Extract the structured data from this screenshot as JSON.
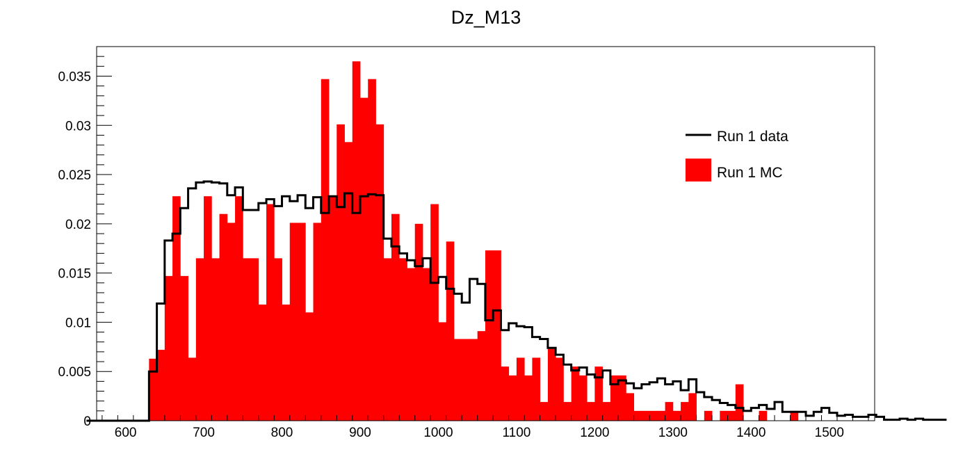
{
  "chart_data": {
    "type": "histogram",
    "title": "Dz_M13",
    "xlabel": "",
    "ylabel": "",
    "xlim": [
      563,
      1558
    ],
    "ylim": [
      0,
      0.038
    ],
    "bin_start": 630,
    "bin_width": 10,
    "x_ticks": [
      600,
      700,
      800,
      900,
      1000,
      1100,
      1200,
      1300,
      1400,
      1500
    ],
    "y_ticks": [
      0,
      0.005,
      0.01,
      0.015,
      0.02,
      0.025,
      0.03,
      0.035
    ],
    "y_tick_labels": [
      "0",
      "0.005",
      "0.01",
      "0.015",
      "0.02",
      "0.025",
      "0.03",
      "0.035"
    ],
    "x_tick_labels": [
      "600",
      "700",
      "800",
      "900",
      "1000",
      "1100",
      "1200",
      "1300",
      "1400",
      "1500"
    ],
    "legend": {
      "placement": "top-right"
    },
    "series": [
      {
        "name": "Run 1 MC",
        "style": "filled",
        "color": "#ff0000",
        "values": [
          0.0063,
          0.0072,
          0.0147,
          0.0228,
          0.0147,
          0.0064,
          0.0165,
          0.0228,
          0.0165,
          0.021,
          0.0201,
          0.0228,
          0.0165,
          0.0165,
          0.0118,
          0.022,
          0.0165,
          0.0118,
          0.0201,
          0.0201,
          0.011,
          0.0201,
          0.0347,
          0.0228,
          0.0301,
          0.0283,
          0.0365,
          0.0328,
          0.0347,
          0.0301,
          0.0165,
          0.021,
          0.0165,
          0.0155,
          0.02,
          0.0155,
          0.022,
          0.01,
          0.0182,
          0.0083,
          0.0083,
          0.0083,
          0.0091,
          0.0173,
          0.0173,
          0.0055,
          0.0046,
          0.0064,
          0.0046,
          0.0064,
          0.0019,
          0.0073,
          0.0064,
          0.0019,
          0.0055,
          0.0046,
          0.0019,
          0.0055,
          0.0019,
          0.0046,
          0.0046,
          0.0028,
          0.001,
          0.001,
          0.001,
          0.001,
          0.0019,
          0.001,
          0.0019,
          0.0028,
          0.0,
          0.001,
          0.0,
          0.001,
          0.001,
          0.0037,
          0.0,
          0.0,
          0.001,
          0.0,
          0.0,
          0.0,
          0.001,
          0.0,
          0.0,
          0.0,
          0.0,
          0.0,
          0.0,
          0.0,
          0.0,
          0.0
        ]
      },
      {
        "name": "Run 1 data",
        "style": "step-line",
        "color": "#000000",
        "pre_values": [
          0,
          0,
          0,
          0,
          0,
          0,
          0,
          0
        ],
        "values": [
          0.005,
          0.0119,
          0.0183,
          0.019,
          0.0216,
          0.0236,
          0.0242,
          0.0243,
          0.0242,
          0.0241,
          0.0229,
          0.0237,
          0.0214,
          0.0214,
          0.0221,
          0.0225,
          0.0218,
          0.0228,
          0.0223,
          0.0229,
          0.0216,
          0.0227,
          0.0211,
          0.0228,
          0.0217,
          0.0231,
          0.0211,
          0.0228,
          0.023,
          0.0229,
          0.0185,
          0.0177,
          0.017,
          0.0163,
          0.0157,
          0.0165,
          0.014,
          0.0146,
          0.0134,
          0.0129,
          0.012,
          0.0144,
          0.0139,
          0.0102,
          0.0112,
          0.0092,
          0.0099,
          0.0096,
          0.0095,
          0.0085,
          0.0083,
          0.0074,
          0.0067,
          0.0057,
          0.0051,
          0.0054,
          0.0047,
          0.0044,
          0.0051,
          0.0037,
          0.0041,
          0.0038,
          0.0033,
          0.0037,
          0.0039,
          0.0043,
          0.0037,
          0.004,
          0.0031,
          0.0042,
          0.0029,
          0.0024,
          0.0021,
          0.0018,
          0.0016,
          0.0013,
          0.001,
          0.0013,
          0.0016,
          0.0012,
          0.0019,
          0.0009,
          0.0009,
          0.0009,
          0.0005,
          0.0009,
          0.0013,
          0.0008,
          0.0005,
          0.0006,
          0.0004,
          0.0004,
          0.0006,
          0.0004,
          0.0001,
          0.0001,
          0.0002,
          0.0001,
          0.0002,
          0.0001,
          0.0001,
          0.0001
        ]
      }
    ]
  }
}
